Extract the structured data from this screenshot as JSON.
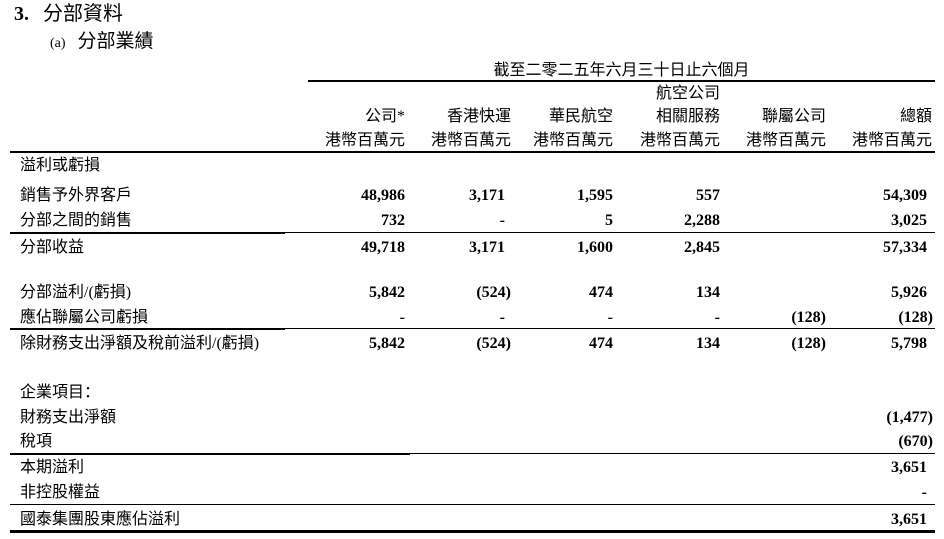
{
  "section": {
    "number": "3.",
    "title": "分部資料"
  },
  "subsection": {
    "label": "(a)",
    "title": "分部業績"
  },
  "period_header": "截至二零二五年六月三十日止六個月",
  "columns": [
    {
      "line1": "",
      "line2": "公司*",
      "unit": "港幣百萬元"
    },
    {
      "line1": "",
      "line2": "香港快運",
      "unit": "港幣百萬元"
    },
    {
      "line1": "",
      "line2": "華民航空",
      "unit": "港幣百萬元"
    },
    {
      "line1": "航空公司",
      "line2": "相關服務",
      "unit": "港幣百萬元"
    },
    {
      "line1": "",
      "line2": "聯屬公司",
      "unit": "港幣百萬元"
    },
    {
      "line1": "",
      "line2": "總額",
      "unit": "港幣百萬元"
    }
  ],
  "group_heading": "溢利或虧損",
  "rows": [
    {
      "label": "銷售予外界客戶",
      "values": [
        "48,986",
        "3,171",
        "1,595",
        "557",
        "",
        "54,309"
      ]
    },
    {
      "label": "分部之間的銷售",
      "values": [
        "732",
        "-",
        "5",
        "2,288",
        "",
        "3,025"
      ]
    },
    {
      "label": "分部收益",
      "values": [
        "49,718",
        "3,171",
        "1,600",
        "2,845",
        "",
        "57,334"
      ]
    },
    {
      "label": "分部溢利/(虧損)",
      "values": [
        "5,842",
        "(524)",
        "474",
        "134",
        "",
        "5,926"
      ]
    },
    {
      "label": "應佔聯屬公司虧損",
      "values": [
        "-",
        "-",
        "-",
        "-",
        "(128)",
        "(128)"
      ]
    },
    {
      "label": "除財務支出淨額及稅前溢利/(虧損)",
      "values": [
        "5,842",
        "(524)",
        "474",
        "134",
        "(128)",
        "5,798"
      ]
    }
  ],
  "corporate_heading": "企業項目：",
  "corporate_rows": [
    {
      "label": "財務支出淨額",
      "total": "(1,477)"
    },
    {
      "label": "稅項",
      "total": "(670)"
    },
    {
      "label": "本期溢利",
      "total": "3,651"
    },
    {
      "label": "非控股權益",
      "total": "-"
    },
    {
      "label": "國泰集團股東應佔溢利",
      "total": "3,651"
    }
  ]
}
